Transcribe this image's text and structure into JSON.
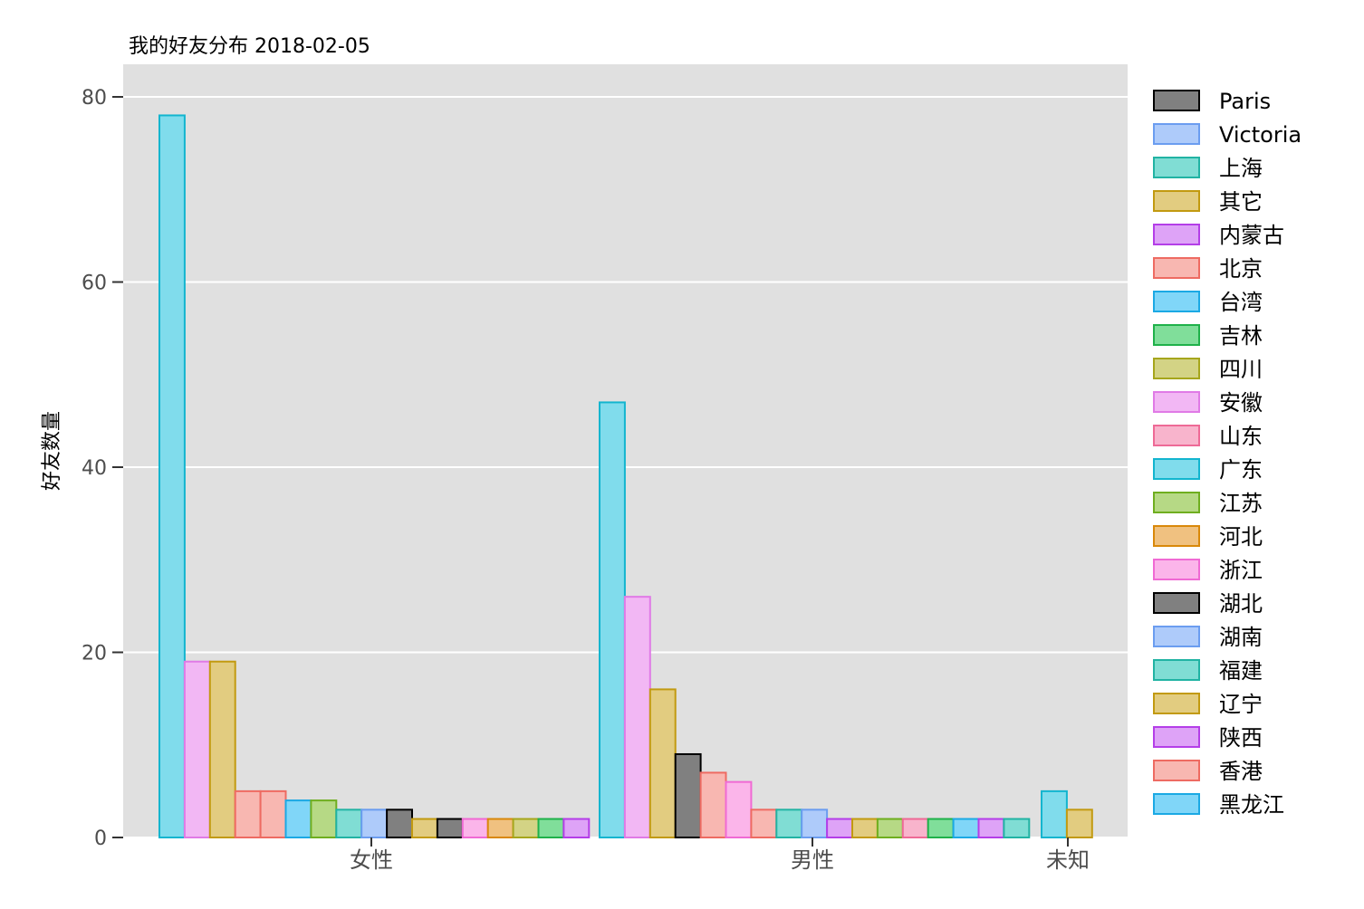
{
  "chart_data": {
    "type": "bar",
    "title": "我的好友分布 2018-02-05",
    "xlabel": "",
    "ylabel": "好友数量",
    "ylim": [
      0,
      80
    ],
    "yticks": [
      0,
      20,
      40,
      60,
      80
    ],
    "grid": true,
    "legend_position": "right",
    "legend": [
      {
        "name": "Paris",
        "fill": "#808080",
        "stroke": "#000000"
      },
      {
        "name": "Victoria",
        "fill": "#aecbfa",
        "stroke": "#6b9df0"
      },
      {
        "name": "上海",
        "fill": "#80ddd4",
        "stroke": "#21b3a3"
      },
      {
        "name": "其它",
        "fill": "#e2cc80",
        "stroke": "#c29a10"
      },
      {
        "name": "内蒙古",
        "fill": "#dea3f7",
        "stroke": "#b43ee8"
      },
      {
        "name": "北京",
        "fill": "#f8b7b1",
        "stroke": "#ee6b62"
      },
      {
        "name": "台湾",
        "fill": "#80d6f8",
        "stroke": "#1ba9e4"
      },
      {
        "name": "吉林",
        "fill": "#80de9a",
        "stroke": "#1fb14a"
      },
      {
        "name": "四川",
        "fill": "#d3d385",
        "stroke": "#a6a61c"
      },
      {
        "name": "安徽",
        "fill": "#f2b7f4",
        "stroke": "#e07ae6"
      },
      {
        "name": "山东",
        "fill": "#f8b4cc",
        "stroke": "#ee6a96"
      },
      {
        "name": "广东",
        "fill": "#80dcec",
        "stroke": "#12b5cf"
      },
      {
        "name": "江苏",
        "fill": "#b6d985",
        "stroke": "#6fae1f"
      },
      {
        "name": "河北",
        "fill": "#f0c180",
        "stroke": "#d9880a"
      },
      {
        "name": "浙江",
        "fill": "#fbb5ea",
        "stroke": "#f06ad4"
      },
      {
        "name": "湖北",
        "fill": "#808080",
        "stroke": "#000000"
      },
      {
        "name": "湖南",
        "fill": "#aecbfa",
        "stroke": "#6b9df0"
      },
      {
        "name": "福建",
        "fill": "#80ddd4",
        "stroke": "#21b3a3"
      },
      {
        "name": "辽宁",
        "fill": "#e2cc80",
        "stroke": "#c29a10"
      },
      {
        "name": "陕西",
        "fill": "#dea3f7",
        "stroke": "#b43ee8"
      },
      {
        "name": "香港",
        "fill": "#f8b7b1",
        "stroke": "#ee6b62"
      },
      {
        "name": "黑龙江",
        "fill": "#80d6f8",
        "stroke": "#1ba9e4"
      }
    ],
    "categories": [
      "女性",
      "男性",
      "未知"
    ],
    "groups": [
      {
        "category": "女性",
        "bars": [
          {
            "series": "广东",
            "value": 78
          },
          {
            "series": "安徽",
            "value": 19
          },
          {
            "series": "辽宁",
            "value": 19
          },
          {
            "series": "北京",
            "value": 5
          },
          {
            "series": "香港",
            "value": 5
          },
          {
            "series": "黑龙江",
            "value": 4
          },
          {
            "series": "江苏",
            "value": 4
          },
          {
            "series": "福建",
            "value": 3
          },
          {
            "series": "湖南",
            "value": 3
          },
          {
            "series": "湖北",
            "value": 3
          },
          {
            "series": "其它",
            "value": 2
          },
          {
            "series": "Paris",
            "value": 2
          },
          {
            "series": "浙江",
            "value": 2
          },
          {
            "series": "河北",
            "value": 2
          },
          {
            "series": "四川",
            "value": 2
          },
          {
            "series": "吉林",
            "value": 2
          },
          {
            "series": "陕西",
            "value": 2
          }
        ]
      },
      {
        "category": "男性",
        "bars": [
          {
            "series": "广东",
            "value": 47
          },
          {
            "series": "安徽",
            "value": 26
          },
          {
            "series": "辽宁",
            "value": 16
          },
          {
            "series": "湖北",
            "value": 9
          },
          {
            "series": "北京",
            "value": 7
          },
          {
            "series": "浙江",
            "value": 6
          },
          {
            "series": "香港",
            "value": 3
          },
          {
            "series": "福建",
            "value": 3
          },
          {
            "series": "湖南",
            "value": 3
          },
          {
            "series": "陕西",
            "value": 2
          },
          {
            "series": "其它",
            "value": 2
          },
          {
            "series": "江苏",
            "value": 2
          },
          {
            "series": "山东",
            "value": 2
          },
          {
            "series": "吉林",
            "value": 2
          },
          {
            "series": "黑龙江",
            "value": 2
          },
          {
            "series": "内蒙古",
            "value": 2
          },
          {
            "series": "上海",
            "value": 2
          }
        ]
      },
      {
        "category": "未知",
        "bars": [
          {
            "series": "广东",
            "value": 5
          },
          {
            "series": "辽宁",
            "value": 3
          }
        ]
      }
    ]
  }
}
